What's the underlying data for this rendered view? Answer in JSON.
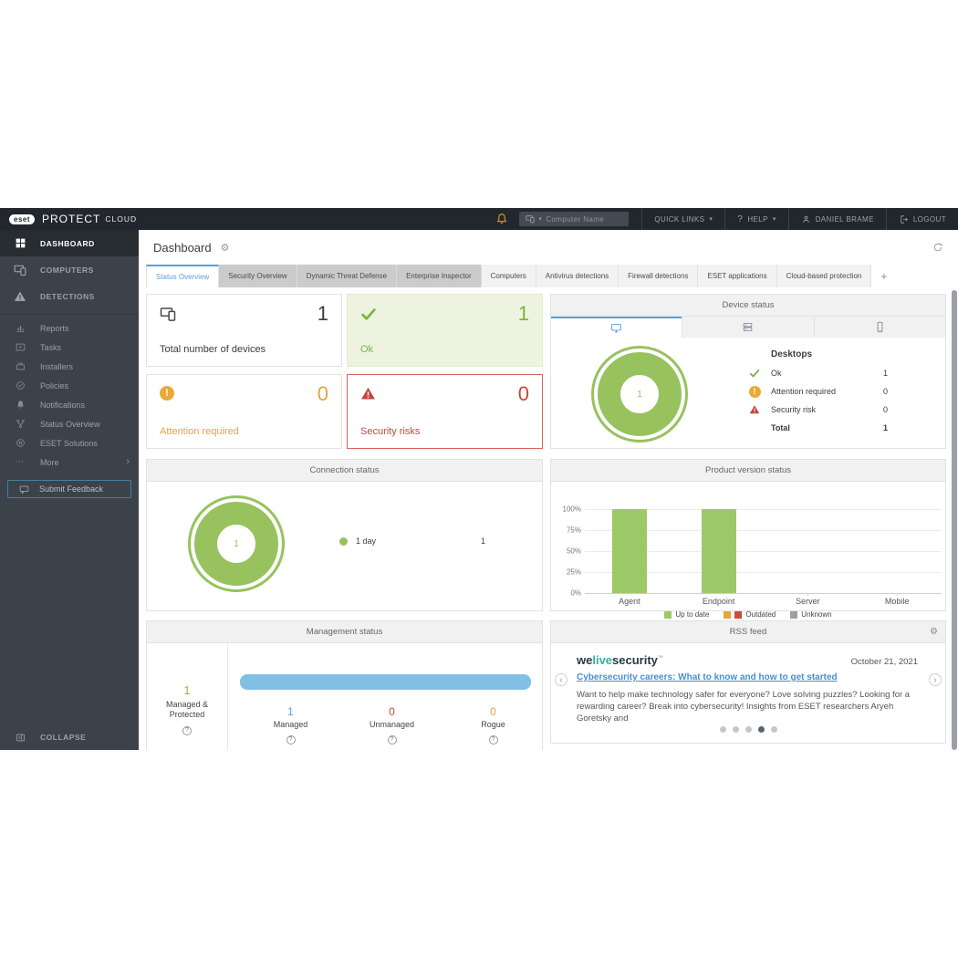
{
  "topbar": {
    "brand_badge": "eset",
    "brand_name": "PROTECT",
    "brand_suffix": "CLOUD",
    "computer_search_placeholder": "Computer Name",
    "quick_links_label": "QUICK LINKS",
    "help_label": "HELP",
    "user_name": "DANIEL BRAME",
    "logout_label": "LOGOUT"
  },
  "sidebar": {
    "main_items": [
      {
        "label": "DASHBOARD",
        "icon": "grid",
        "active": true
      },
      {
        "label": "COMPUTERS",
        "icon": "computers",
        "active": false
      },
      {
        "label": "DETECTIONS",
        "icon": "warning",
        "active": false
      }
    ],
    "sub_items": [
      {
        "label": "Reports",
        "icon": "reports"
      },
      {
        "label": "Tasks",
        "icon": "tasks"
      },
      {
        "label": "Installers",
        "icon": "installers"
      },
      {
        "label": "Policies",
        "icon": "policies"
      },
      {
        "label": "Notifications",
        "icon": "bell"
      },
      {
        "label": "Status Overview",
        "icon": "fork"
      },
      {
        "label": "ESET Solutions",
        "icon": "solutions"
      },
      {
        "label": "More",
        "icon": "more",
        "chevron": true
      }
    ],
    "feedback_label": "Submit Feedback",
    "collapse_label": "COLLAPSE"
  },
  "page": {
    "title": "Dashboard"
  },
  "tabs": [
    {
      "label": "Status Overview",
      "style": "active"
    },
    {
      "label": "Security Overview",
      "style": "dark"
    },
    {
      "label": "Dynamic Threat Defense",
      "style": "dark"
    },
    {
      "label": "Enterprise Inspector",
      "style": "dark"
    },
    {
      "label": "Computers",
      "style": "light"
    },
    {
      "label": "Antivirus detections",
      "style": "light"
    },
    {
      "label": "Firewall detections",
      "style": "light"
    },
    {
      "label": "ESET applications",
      "style": "light"
    },
    {
      "label": "Cloud-based protection",
      "style": "light"
    },
    {
      "label": "+",
      "style": "plus"
    }
  ],
  "cards": [
    {
      "value": "1",
      "label": "Total number of devices"
    },
    {
      "value": "1",
      "label": "Ok"
    },
    {
      "value": "0",
      "label": "Attention required"
    },
    {
      "value": "0",
      "label": "Security risks"
    }
  ],
  "device_status": {
    "title": "Device status",
    "group_title": "Desktops",
    "donut_value": "1",
    "rows": [
      {
        "icon": "check",
        "label": "Ok",
        "value": "1"
      },
      {
        "icon": "attention",
        "label": "Attention required",
        "value": "0"
      },
      {
        "icon": "risk",
        "label": "Security risk",
        "value": "0"
      }
    ],
    "total_label": "Total",
    "total_value": "1"
  },
  "connection_status": {
    "title": "Connection status",
    "donut_value": "1",
    "legend_label": "1 day",
    "legend_value": "1"
  },
  "product_version": {
    "title": "Product version status",
    "categories": [
      "Agent",
      "Endpoint",
      "Server",
      "Mobile"
    ],
    "values": [
      100,
      100,
      0,
      0
    ],
    "yticks_top_down": [
      "100%",
      "75%",
      "50%",
      "25%",
      "0%"
    ],
    "legend": [
      {
        "label": "Up to date",
        "colors": [
          "#9dc868"
        ]
      },
      {
        "label": "Outdated",
        "colors": [
          "#e8a33d",
          "#cc4b41"
        ]
      },
      {
        "label": "Unknown",
        "colors": [
          "#9e9e9e"
        ]
      }
    ]
  },
  "management_status": {
    "title": "Management status",
    "summary_value": "1",
    "summary_label": "Managed & Protected",
    "stats": [
      {
        "value": "1",
        "label": "Managed",
        "color": "#5b9bd5"
      },
      {
        "value": "0",
        "label": "Unmanaged",
        "color": "#c44a3e"
      },
      {
        "value": "0",
        "label": "Rogue",
        "color": "#e8a33d"
      }
    ]
  },
  "rss": {
    "title": "RSS feed",
    "brand_we": "we",
    "brand_live": "live",
    "brand_security": "security",
    "trademark": "™",
    "date": "October 21, 2021",
    "headline": "Cybersecurity careers: What to know and how to get started",
    "body": "Want to help make technology safer for everyone? Love solving puzzles? Looking for a rewarding career? Break into cybersecurity! Insights from ESET researchers Aryeh Goretsky and",
    "dots_count": 5,
    "dots_active_index": 3
  },
  "chart_data": [
    {
      "type": "pie",
      "title": "Device status (Desktops)",
      "slices": [
        {
          "label": "Ok",
          "value": 1,
          "color": "#97c25e"
        }
      ],
      "center_label": "1"
    },
    {
      "type": "pie",
      "title": "Connection status",
      "slices": [
        {
          "label": "1 day",
          "value": 1,
          "color": "#97c25e"
        }
      ],
      "center_label": "1"
    },
    {
      "type": "bar",
      "title": "Product version status",
      "categories": [
        "Agent",
        "Endpoint",
        "Server",
        "Mobile"
      ],
      "series": [
        {
          "name": "Up to date",
          "color": "#9dc868",
          "values": [
            100,
            100,
            0,
            0
          ]
        },
        {
          "name": "Outdated",
          "color": "#cc4b41",
          "values": [
            0,
            0,
            0,
            0
          ]
        },
        {
          "name": "Unknown",
          "color": "#9e9e9e",
          "values": [
            0,
            0,
            0,
            0
          ]
        }
      ],
      "ylabel": "",
      "ylim": [
        0,
        100
      ],
      "yticks": [
        "0%",
        "25%",
        "50%",
        "75%",
        "100%"
      ],
      "grid": true,
      "legend_position": "bottom"
    }
  ],
  "colors": {
    "accent_blue": "#5b9fd4",
    "green": "#97c25e",
    "orange": "#e8a33d",
    "red": "#c8453c",
    "bar_blue": "#82bfe5"
  }
}
